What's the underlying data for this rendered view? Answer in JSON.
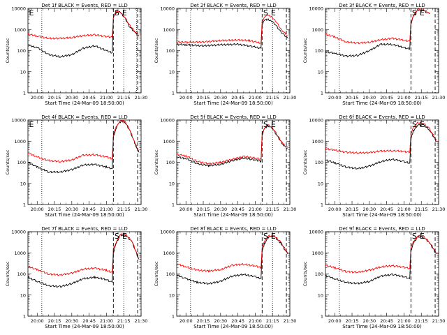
{
  "x_tick_labels": [
    "20:00",
    "20:15",
    "20:30",
    "20:45",
    "21:00",
    "21:15",
    "21:30"
  ],
  "ylabel": "Counts/sec",
  "xlabel": "Start Time (24-Mar-09 18:50:00)",
  "y_tick_labels": [
    "1",
    "10",
    "100",
    "1000",
    "10000"
  ],
  "colors": {
    "events": "#000000",
    "lld": "#ff0000"
  },
  "chart_data": [
    {
      "type": "line",
      "title": "Det 1f BLACK = Events, RED = LLD",
      "markers": [
        "E",
        "S",
        "E"
      ],
      "x_unit": "hh:mm (24-Mar-09)",
      "xlim": [
        "19:52",
        "21:30"
      ],
      "ylim": [
        1,
        10000
      ],
      "y_scale": "log",
      "grid": false,
      "vlines": {
        "dotted": [
          "20:04",
          "21:15",
          "21:26"
        ],
        "dashed": [
          "21:06",
          "21:27"
        ]
      },
      "series": [
        {
          "name": "Events",
          "x": [
            "19:52",
            "20:00",
            "20:10",
            "20:20",
            "20:30",
            "20:40",
            "20:50",
            "21:00",
            "21:05",
            "21:06",
            "21:07",
            "21:09",
            "21:12",
            "21:16",
            "21:20",
            "21:25",
            "21:28"
          ],
          "values": [
            180,
            140,
            65,
            52,
            65,
            130,
            170,
            100,
            80,
            3500,
            5000,
            7200,
            6500,
            3500,
            1400,
            700,
            500
          ]
        },
        {
          "name": "LLD",
          "x": [
            "19:52",
            "20:00",
            "20:10",
            "20:20",
            "20:30",
            "20:40",
            "20:50",
            "21:00",
            "21:05",
            "21:06",
            "21:07",
            "21:09",
            "21:12",
            "21:16",
            "21:20",
            "21:25",
            "21:28"
          ],
          "values": [
            600,
            500,
            380,
            380,
            420,
            520,
            560,
            470,
            430,
            3600,
            5200,
            7400,
            6800,
            3800,
            1600,
            800,
            550
          ]
        }
      ]
    },
    {
      "type": "line",
      "title": "Det 2f BLACK = Events, RED = LLD",
      "markers": [
        "S",
        "E"
      ],
      "x_unit": "hh:mm (24-Mar-09)",
      "xlim": [
        "19:52",
        "21:30"
      ],
      "ylim": [
        1,
        10000
      ],
      "y_scale": "log",
      "grid": false,
      "vlines": {
        "dotted": [
          "20:04",
          "21:15"
        ],
        "dashed": [
          "21:06",
          "21:27"
        ]
      },
      "series": [
        {
          "name": "Events",
          "x": [
            "19:52",
            "20:00",
            "20:15",
            "20:30",
            "20:45",
            "20:55",
            "21:05",
            "21:06",
            "21:08",
            "21:11",
            "21:14",
            "21:18",
            "21:22",
            "21:26",
            "21:28"
          ],
          "values": [
            200,
            190,
            170,
            190,
            200,
            170,
            130,
            1800,
            2800,
            3000,
            2600,
            1600,
            800,
            500,
            400
          ]
        },
        {
          "name": "LLD",
          "x": [
            "19:52",
            "20:00",
            "20:15",
            "20:30",
            "20:45",
            "20:55",
            "21:05",
            "21:06",
            "21:08",
            "21:11",
            "21:14",
            "21:18",
            "21:22",
            "21:26",
            "21:28"
          ],
          "values": [
            260,
            250,
            260,
            300,
            320,
            300,
            230,
            2400,
            4200,
            4700,
            4000,
            2500,
            1100,
            650,
            500
          ]
        }
      ]
    },
    {
      "type": "line",
      "title": "Det 3f BLACK = Events, RED = LLD",
      "markers": [
        "S",
        "E"
      ],
      "x_unit": "hh:mm (24-Mar-09)",
      "xlim": [
        "19:52",
        "21:30"
      ],
      "ylim": [
        1,
        10000
      ],
      "y_scale": "log",
      "grid": false,
      "vlines": {
        "dotted": [
          "20:04"
        ],
        "dashed": [
          "21:06",
          "21:27"
        ]
      },
      "series": [
        {
          "name": "Events",
          "x": [
            "19:52",
            "20:00",
            "20:10",
            "20:20",
            "20:30",
            "20:40",
            "20:50",
            "21:00",
            "21:05",
            "21:06",
            "21:08",
            "21:12",
            "21:17",
            "21:22"
          ],
          "values": [
            90,
            75,
            55,
            60,
            100,
            200,
            200,
            140,
            120,
            1800,
            4000,
            8500,
            8000,
            5500
          ]
        },
        {
          "name": "LLD",
          "x": [
            "19:52",
            "20:00",
            "20:10",
            "20:20",
            "20:30",
            "20:40",
            "20:50",
            "21:00",
            "21:05",
            "21:06",
            "21:08",
            "21:12",
            "21:17",
            "21:22"
          ],
          "values": [
            600,
            450,
            260,
            230,
            250,
            330,
            380,
            320,
            280,
            2200,
            4500,
            9000,
            8500,
            6000
          ]
        }
      ]
    },
    {
      "type": "line",
      "title": "Det 4f BLACK = Events, RED = LLD",
      "markers": [
        "E"
      ],
      "x_unit": "hh:mm (24-Mar-09)",
      "xlim": [
        "19:52",
        "21:30"
      ],
      "ylim": [
        1,
        10000
      ],
      "y_scale": "log",
      "grid": false,
      "vlines": {
        "dotted": [
          "20:04"
        ],
        "dashed": [
          "21:06",
          "21:27"
        ]
      },
      "series": [
        {
          "name": "Events",
          "x": [
            "19:52",
            "20:00",
            "20:10",
            "20:20",
            "20:30",
            "20:40",
            "20:50",
            "21:00",
            "21:05",
            "21:06",
            "21:08",
            "21:10",
            "21:13",
            "21:16",
            "21:20",
            "21:25",
            "21:28"
          ],
          "values": [
            100,
            60,
            35,
            35,
            45,
            75,
            80,
            60,
            50,
            1500,
            3800,
            6500,
            9000,
            8000,
            3500,
            700,
            300
          ]
        },
        {
          "name": "LLD",
          "x": [
            "19:52",
            "20:00",
            "20:10",
            "20:20",
            "20:30",
            "20:40",
            "20:50",
            "21:00",
            "21:05",
            "21:06",
            "21:08",
            "21:10",
            "21:13",
            "21:16",
            "21:20",
            "21:25",
            "21:28"
          ],
          "values": [
            280,
            180,
            120,
            110,
            130,
            220,
            230,
            180,
            150,
            2000,
            4200,
            7000,
            9500,
            8600,
            3800,
            750,
            350
          ]
        }
      ]
    },
    {
      "type": "line",
      "title": "Det 5f BLACK = Events, RED = LLD",
      "markers": [
        "S",
        "E"
      ],
      "x_unit": "hh:mm (24-Mar-09)",
      "xlim": [
        "19:52",
        "21:30"
      ],
      "ylim": [
        1,
        10000
      ],
      "y_scale": "log",
      "grid": false,
      "vlines": {
        "dotted": [
          "20:04",
          "21:15"
        ],
        "dashed": [
          "21:06",
          "21:27"
        ]
      },
      "series": [
        {
          "name": "Events",
          "x": [
            "19:52",
            "20:00",
            "20:10",
            "20:20",
            "20:30",
            "20:40",
            "20:50",
            "21:00",
            "21:05",
            "21:06",
            "21:08",
            "21:11",
            "21:15",
            "21:19",
            "21:24",
            "21:28"
          ],
          "values": [
            180,
            150,
            85,
            70,
            80,
            120,
            160,
            130,
            110,
            2000,
            4000,
            5500,
            4000,
            1800,
            700,
            450
          ]
        },
        {
          "name": "LLD",
          "x": [
            "19:52",
            "20:00",
            "20:10",
            "20:20",
            "20:30",
            "20:40",
            "20:50",
            "21:00",
            "21:05",
            "21:06",
            "21:08",
            "21:11",
            "21:15",
            "21:19",
            "21:24",
            "21:28"
          ],
          "values": [
            240,
            200,
            110,
            85,
            100,
            140,
            190,
            160,
            140,
            2300,
            4400,
            6000,
            4400,
            2000,
            750,
            500
          ]
        }
      ]
    },
    {
      "type": "line",
      "title": "Det 6f BLACK = Events, RED = LLD",
      "markers": [
        "S",
        "E"
      ],
      "x_unit": "hh:mm (24-Mar-09)",
      "xlim": [
        "19:52",
        "21:30"
      ],
      "ylim": [
        1,
        10000
      ],
      "y_scale": "log",
      "grid": false,
      "vlines": {
        "dotted": [
          "20:04"
        ],
        "dashed": [
          "21:06",
          "21:27"
        ]
      },
      "series": [
        {
          "name": "Events",
          "x": [
            "19:52",
            "20:00",
            "20:10",
            "20:20",
            "20:30",
            "20:40",
            "20:50",
            "21:00",
            "21:05",
            "21:06",
            "21:08",
            "21:12",
            "21:17",
            "21:22",
            "21:28"
          ],
          "values": [
            130,
            95,
            60,
            50,
            65,
            110,
            140,
            110,
            90,
            1200,
            3000,
            6000,
            5800,
            3500,
            1000
          ]
        },
        {
          "name": "LLD",
          "x": [
            "19:52",
            "20:00",
            "20:10",
            "20:20",
            "20:30",
            "20:40",
            "20:50",
            "21:00",
            "21:05",
            "21:06",
            "21:08",
            "21:12",
            "21:17",
            "21:22",
            "21:28"
          ],
          "values": [
            450,
            380,
            300,
            280,
            290,
            340,
            360,
            330,
            300,
            2200,
            4200,
            7500,
            7000,
            4000,
            1100
          ]
        }
      ]
    },
    {
      "type": "line",
      "title": "Det 7f BLACK = Events, RED = LLD",
      "markers": [
        "S",
        "E"
      ],
      "x_unit": "hh:mm (24-Mar-09)",
      "xlim": [
        "19:52",
        "21:30"
      ],
      "ylim": [
        1,
        10000
      ],
      "y_scale": "log",
      "grid": false,
      "vlines": {
        "dotted": [
          "20:04",
          "21:15"
        ],
        "dashed": [
          "21:06",
          "21:27"
        ]
      },
      "series": [
        {
          "name": "Events",
          "x": [
            "19:52",
            "20:00",
            "20:10",
            "20:20",
            "20:30",
            "20:40",
            "20:50",
            "21:00",
            "21:05",
            "21:06",
            "21:08",
            "21:12",
            "21:17",
            "21:22",
            "21:28"
          ],
          "values": [
            70,
            45,
            28,
            25,
            35,
            60,
            70,
            55,
            40,
            1000,
            2500,
            7000,
            6500,
            3500,
            500
          ]
        },
        {
          "name": "LLD",
          "x": [
            "19:52",
            "20:00",
            "20:10",
            "20:20",
            "20:30",
            "20:40",
            "20:50",
            "21:00",
            "21:05",
            "21:06",
            "21:08",
            "21:12",
            "21:17",
            "21:22",
            "21:28"
          ],
          "values": [
            230,
            160,
            100,
            90,
            110,
            170,
            190,
            150,
            120,
            1500,
            3000,
            7500,
            7000,
            3800,
            550
          ]
        }
      ]
    },
    {
      "type": "line",
      "title": "Det 8f BLACK = Events, RED = LLD",
      "markers": [
        "S",
        "E"
      ],
      "x_unit": "hh:mm (24-Mar-09)",
      "xlim": [
        "19:52",
        "21:30"
      ],
      "ylim": [
        1,
        10000
      ],
      "y_scale": "log",
      "grid": false,
      "vlines": {
        "dotted": [
          "20:04",
          "21:15"
        ],
        "dashed": [
          "21:06",
          "21:27"
        ]
      },
      "series": [
        {
          "name": "Events",
          "x": [
            "19:52",
            "20:00",
            "20:10",
            "20:20",
            "20:30",
            "20:40",
            "20:50",
            "21:00",
            "21:05",
            "21:06",
            "21:08",
            "21:12",
            "21:17",
            "21:22",
            "21:28"
          ],
          "values": [
            90,
            60,
            40,
            35,
            45,
            80,
            95,
            75,
            60,
            1200,
            2800,
            6000,
            5500,
            3000,
            900
          ]
        },
        {
          "name": "LLD",
          "x": [
            "19:52",
            "20:00",
            "20:10",
            "20:20",
            "20:30",
            "20:40",
            "20:50",
            "21:00",
            "21:05",
            "21:06",
            "21:08",
            "21:12",
            "21:17",
            "21:22",
            "21:28"
          ],
          "values": [
            300,
            220,
            150,
            140,
            160,
            260,
            290,
            240,
            200,
            1800,
            3500,
            6500,
            6000,
            3300,
            1000
          ]
        }
      ]
    },
    {
      "type": "line",
      "title": "Det 9f BLACK = Events, RED = LLD",
      "markers": [
        "S",
        "E"
      ],
      "x_unit": "hh:mm (24-Mar-09)",
      "xlim": [
        "19:52",
        "21:30"
      ],
      "ylim": [
        1,
        10000
      ],
      "y_scale": "log",
      "grid": false,
      "vlines": {
        "dotted": [
          "20:04"
        ],
        "dashed": [
          "21:06",
          "21:27"
        ]
      },
      "series": [
        {
          "name": "Events",
          "x": [
            "19:52",
            "20:00",
            "20:10",
            "20:20",
            "20:30",
            "20:40",
            "20:50",
            "21:00",
            "21:05",
            "21:06",
            "21:08",
            "21:12",
            "21:17",
            "21:22",
            "21:28"
          ],
          "values": [
            85,
            60,
            40,
            35,
            45,
            80,
            95,
            75,
            60,
            1200,
            2800,
            6000,
            5500,
            3000,
            900
          ]
        },
        {
          "name": "LLD",
          "x": [
            "19:52",
            "20:00",
            "20:10",
            "20:20",
            "20:30",
            "20:40",
            "20:50",
            "21:00",
            "21:05",
            "21:06",
            "21:08",
            "21:12",
            "21:17",
            "21:22",
            "21:28"
          ],
          "values": [
            260,
            200,
            130,
            120,
            150,
            220,
            250,
            210,
            180,
            1700,
            3300,
            6500,
            6000,
            3300,
            1000
          ]
        }
      ]
    }
  ]
}
